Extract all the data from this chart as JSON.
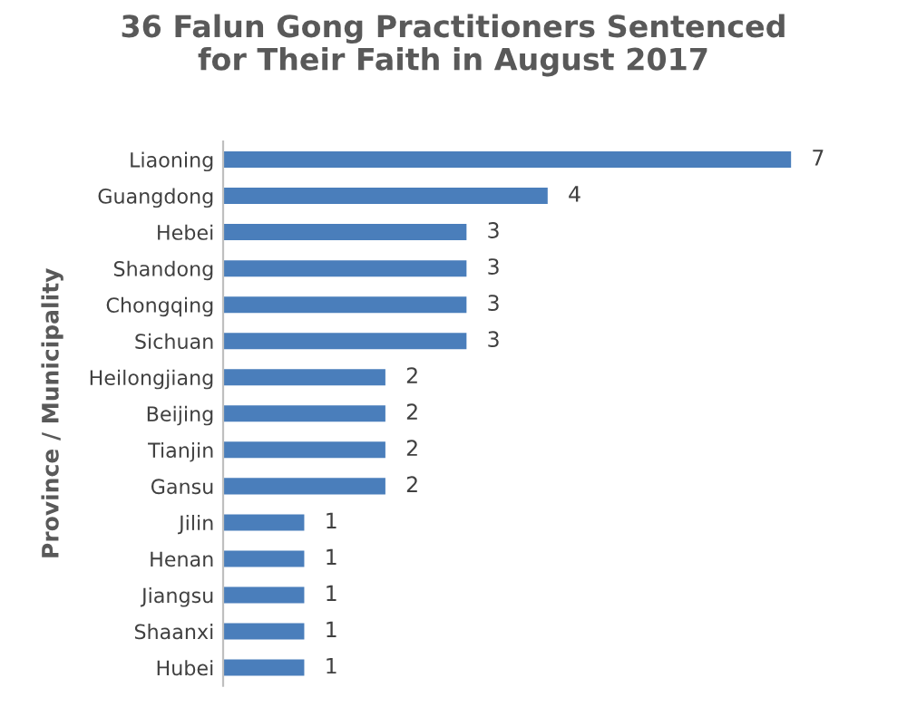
{
  "chart_data": {
    "type": "bar",
    "orientation": "horizontal",
    "title": "36 Falun Gong Practitioners Sentenced\nfor Their Faith in August 2017",
    "ylabel": "Province / Municipality",
    "categories": [
      "Liaoning",
      "Guangdong",
      "Hebei",
      "Shandong",
      "Chongqing",
      "Sichuan",
      "Heilongjiang",
      "Beijing",
      "Tianjin",
      "Gansu",
      "Jilin",
      "Henan",
      "Jiangsu",
      "Shaanxi",
      "Hubei"
    ],
    "values": [
      7,
      4,
      3,
      3,
      3,
      3,
      2,
      2,
      2,
      2,
      1,
      1,
      1,
      1,
      1
    ],
    "color": "#4a7ebb",
    "data_labels": true,
    "grid": false,
    "legend": false
  }
}
